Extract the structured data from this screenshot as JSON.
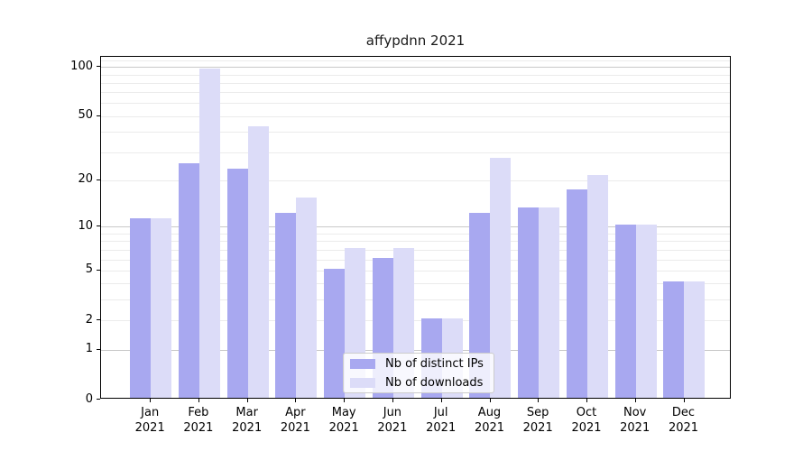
{
  "title": "affypdnn 2021",
  "chart_data": {
    "type": "bar",
    "title": "affypdnn 2021",
    "categories": [
      "Jan",
      "Feb",
      "Mar",
      "Apr",
      "May",
      "Jun",
      "Jul",
      "Aug",
      "Sep",
      "Oct",
      "Nov",
      "Dec"
    ],
    "category_year": "2021",
    "series": [
      {
        "name": "Nb of distinct IPs",
        "color": "#a8a8f0",
        "values": [
          11,
          25,
          23,
          12,
          5,
          6,
          2,
          12,
          13,
          17,
          10,
          4
        ]
      },
      {
        "name": "Nb of downloads",
        "color": "#dcdcf8",
        "values": [
          11,
          95,
          42,
          15,
          7,
          7,
          2,
          27,
          13,
          21,
          10,
          4
        ]
      }
    ],
    "xlabel": "",
    "ylabel": "",
    "yscale": "log10(1+value)",
    "ylim": [
      0,
      117
    ],
    "yticks": [
      0,
      1,
      2,
      5,
      10,
      20,
      50,
      100
    ],
    "major_gridlines": [
      1,
      10,
      100
    ],
    "minor_gridlines": [
      2,
      3,
      4,
      5,
      6,
      7,
      8,
      9,
      20,
      30,
      40,
      50,
      60,
      70,
      80,
      90,
      110
    ],
    "grid": true,
    "legend_position": "inside lower-center"
  },
  "colors": {
    "grid_minor": "#ebebeb",
    "grid_major": "#c9c9c9",
    "spine": "#000000",
    "title_text": "#1a1a1a",
    "tick_text": "#000000",
    "legend_border": "#cccccc"
  }
}
